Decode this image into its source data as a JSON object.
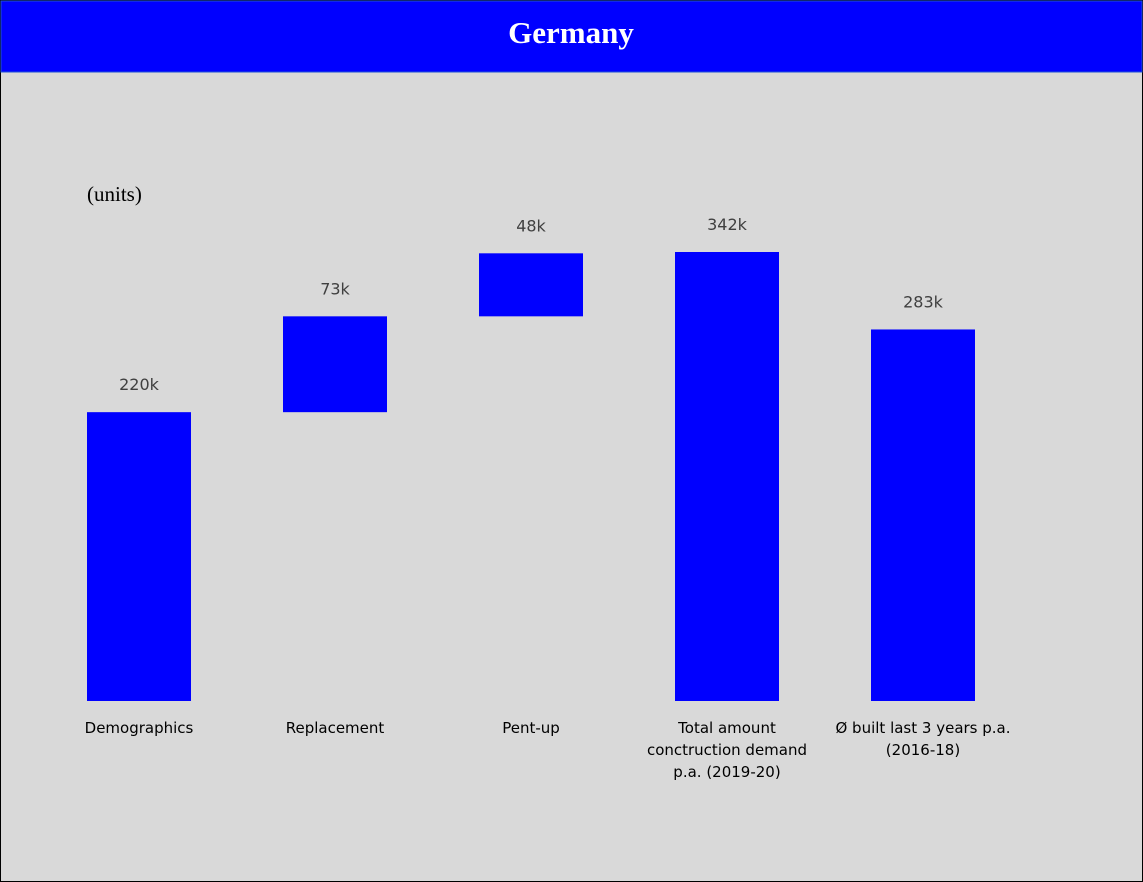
{
  "chart_data": {
    "type": "waterfall",
    "title": "Germany",
    "subtitle": "(units)",
    "categories": [
      [
        "Demographics"
      ],
      [
        "Replacement"
      ],
      [
        "Pent-up"
      ],
      [
        "Total amount",
        "conctruction demand",
        "p.a. (2019-20)"
      ],
      [
        "Ø built last 3 years p.a.",
        "(2016-18)"
      ]
    ],
    "values": [
      220000,
      73000,
      48000,
      342000,
      283000
    ],
    "value_labels": [
      "220k",
      "73k",
      "48k",
      "342k",
      "283k"
    ],
    "measure": [
      "relative",
      "relative",
      "relative",
      "total",
      "total"
    ],
    "color": "#0000ff"
  }
}
